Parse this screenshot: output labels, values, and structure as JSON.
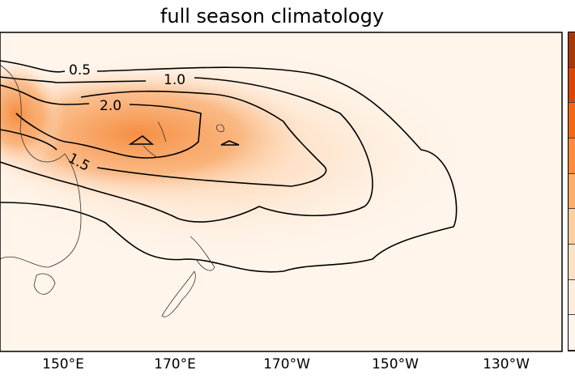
{
  "title": "full season climatology",
  "x_ticks": [
    "150°E",
    "170°E",
    "170°W",
    "150°W",
    "130°W"
  ],
  "contour_labels": [
    "0.5",
    "1.0",
    "2.0",
    "1.5"
  ],
  "colorbar": {
    "colors": [
      "#a63a06",
      "#d94801",
      "#f16913",
      "#fd8d3c",
      "#fdae6b",
      "#fdd0a2",
      "#fee1c4",
      "#feecdc",
      "#fff5eb"
    ]
  },
  "colors": {
    "background": "#fff5eb",
    "peak": "#f58a3c",
    "contour": "#000000"
  }
}
